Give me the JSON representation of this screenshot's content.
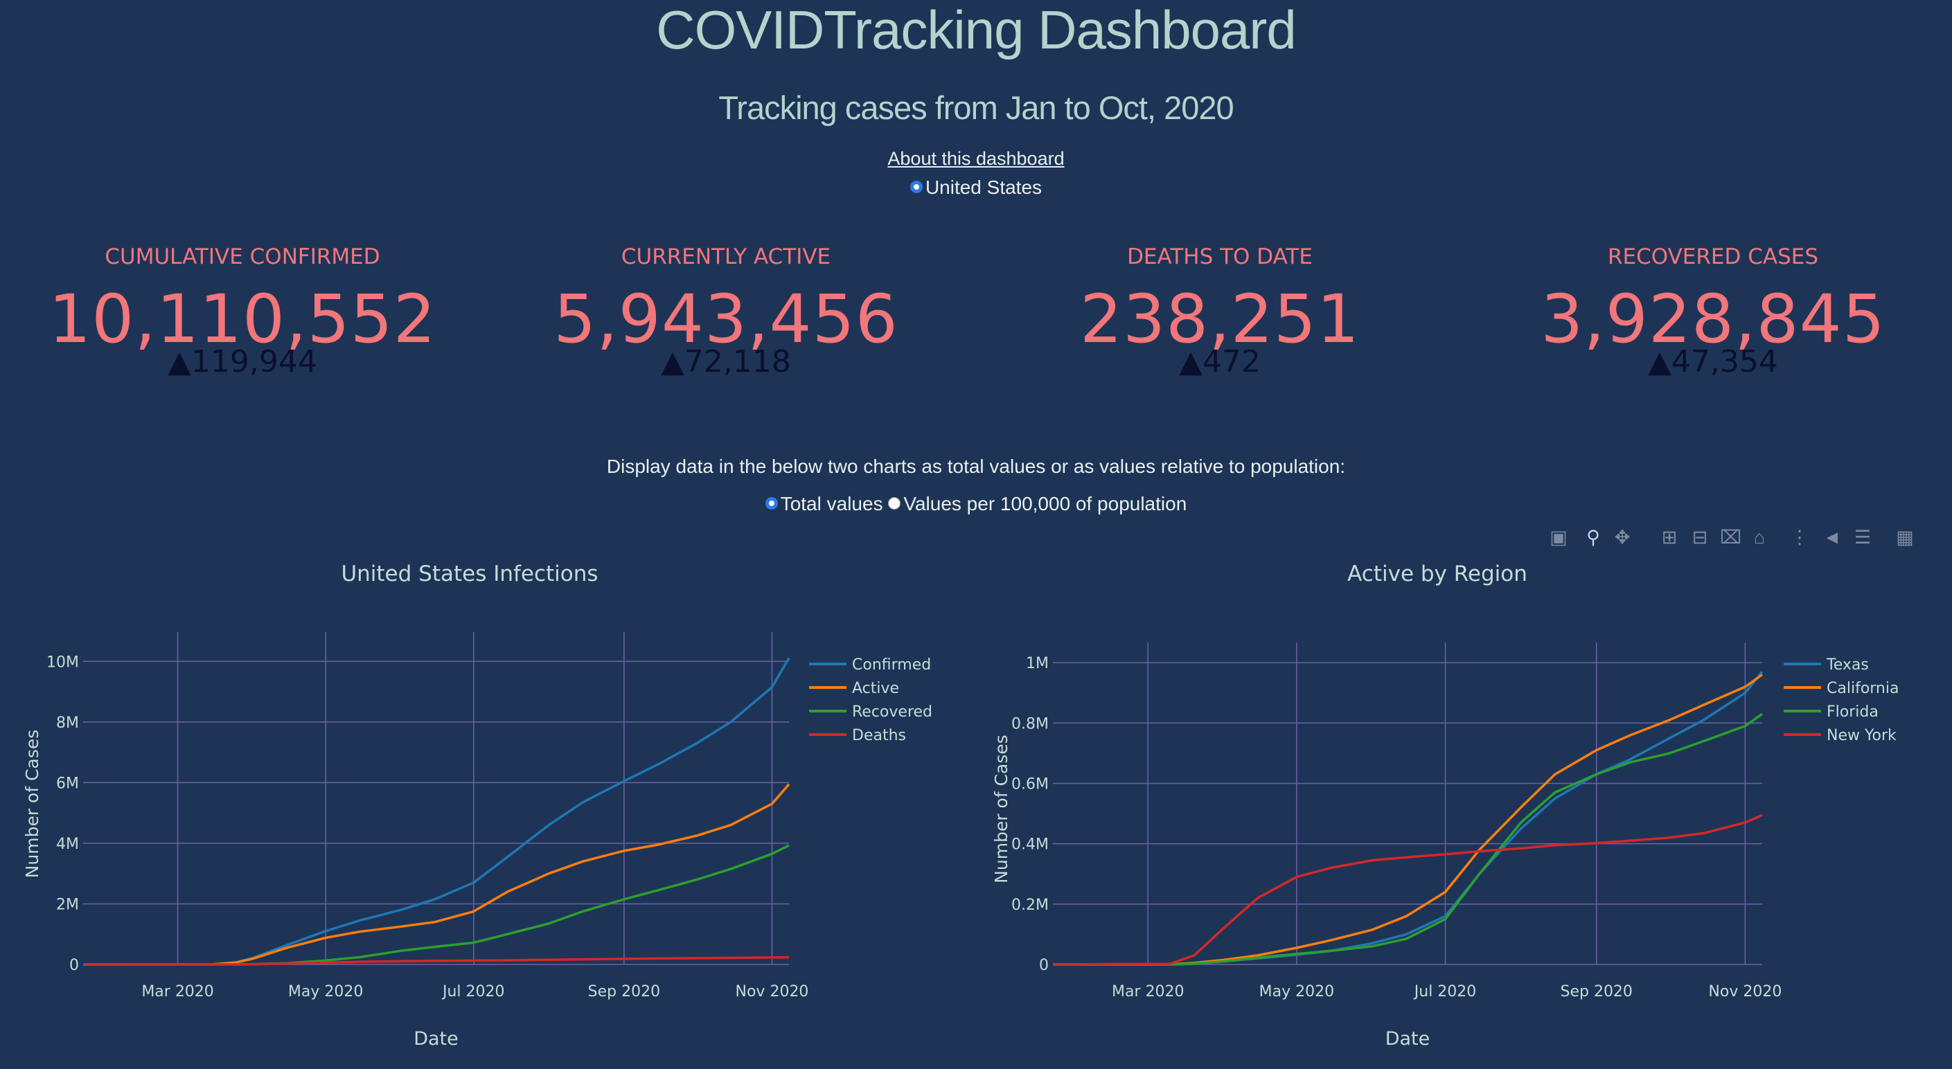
{
  "header": {
    "title": "COVIDTracking Dashboard",
    "subtitle": "Tracking cases from Jan to Oct, 2020",
    "about_link": "About this dashboard",
    "region_option": "United States"
  },
  "kpis": [
    {
      "label": "CUMULATIVE CONFIRMED",
      "value": "10,110,552",
      "delta": "▲119,944"
    },
    {
      "label": "CURRENTLY ACTIVE",
      "value": "5,943,456",
      "delta": "▲72,118"
    },
    {
      "label": "DEATHS TO DATE",
      "value": "238,251",
      "delta": "▲472"
    },
    {
      "label": "RECOVERED CASES",
      "value": "3,928,845",
      "delta": "▲47,354"
    }
  ],
  "display": {
    "note": "Display data in the below two charts as total values or as values relative to population:",
    "option_total": "Total values",
    "option_per_capita": "Values per 100,000 of population"
  },
  "modebar_icons": [
    "camera-icon",
    "zoom-icon",
    "pan-icon",
    "zoom-in-icon",
    "zoom-out-icon",
    "autoscale-icon",
    "reset-axes-icon",
    "spike-lines-icon",
    "hover-closest-icon",
    "hover-compare-icon",
    "plotly-logo-icon"
  ],
  "colors": {
    "background": "#1e3456",
    "accent": "#f2767a",
    "grid": "#7566a8",
    "blue": "#1f77b4",
    "orange": "#ff7f0e",
    "green": "#2ca02c",
    "red": "#d62728"
  },
  "chart_data": [
    {
      "type": "line",
      "title": "United States Infections",
      "xlabel": "Date",
      "ylabel": "Number of Cases",
      "x_ticks": [
        "Mar 2020",
        "May 2020",
        "Jul 2020",
        "Sep 2020",
        "Nov 2020"
      ],
      "y_ticks": [
        "0",
        "2M",
        "4M",
        "6M",
        "8M",
        "10M"
      ],
      "ylim": [
        0,
        10600000
      ],
      "legend_position": "top-right",
      "grid": true,
      "x": [
        "2020-01-22",
        "2020-03-15",
        "2020-03-25",
        "2020-04-01",
        "2020-04-15",
        "2020-05-01",
        "2020-05-15",
        "2020-06-01",
        "2020-06-15",
        "2020-07-01",
        "2020-07-15",
        "2020-08-01",
        "2020-08-15",
        "2020-09-01",
        "2020-09-15",
        "2020-10-01",
        "2020-10-15",
        "2020-11-01",
        "2020-11-08"
      ],
      "series": [
        {
          "name": "Confirmed",
          "color": "#1f77b4",
          "values": [
            0,
            3000,
            70000,
            215000,
            640000,
            1100000,
            1450000,
            1800000,
            2150000,
            2700000,
            3550000,
            4600000,
            5350000,
            6050000,
            6600000,
            7300000,
            8000000,
            9150000,
            10110552
          ]
        },
        {
          "name": "Active",
          "color": "#ff7f0e",
          "values": [
            0,
            2500,
            65000,
            190000,
            550000,
            880000,
            1080000,
            1250000,
            1400000,
            1750000,
            2400000,
            3000000,
            3400000,
            3750000,
            3950000,
            4250000,
            4600000,
            5300000,
            5943456
          ]
        },
        {
          "name": "Recovered",
          "color": "#2ca02c",
          "values": [
            0,
            0,
            2000,
            8000,
            40000,
            130000,
            240000,
            450000,
            580000,
            720000,
            1000000,
            1350000,
            1750000,
            2150000,
            2450000,
            2800000,
            3150000,
            3650000,
            3928845
          ]
        },
        {
          "name": "Deaths",
          "color": "#d62728",
          "values": [
            0,
            60,
            1000,
            5000,
            30000,
            65000,
            88000,
            106000,
            118000,
            128000,
            137000,
            155000,
            170000,
            185000,
            197000,
            208000,
            218000,
            230000,
            238251
          ]
        }
      ]
    },
    {
      "type": "line",
      "title": "Active by Region",
      "xlabel": "Date",
      "ylabel": "Number of Cases",
      "x_ticks": [
        "Mar 2020",
        "May 2020",
        "Jul 2020",
        "Sep 2020",
        "Nov 2020"
      ],
      "y_ticks": [
        "0",
        "0.2M",
        "0.4M",
        "0.6M",
        "0.8M",
        "1M"
      ],
      "ylim": [
        0,
        1030000
      ],
      "legend_position": "top-right",
      "grid": true,
      "x": [
        "2020-01-22",
        "2020-03-10",
        "2020-03-20",
        "2020-04-01",
        "2020-04-15",
        "2020-05-01",
        "2020-05-15",
        "2020-06-01",
        "2020-06-15",
        "2020-07-01",
        "2020-07-15",
        "2020-08-01",
        "2020-08-15",
        "2020-09-01",
        "2020-09-15",
        "2020-10-01",
        "2020-10-15",
        "2020-11-01",
        "2020-11-08"
      ],
      "series": [
        {
          "name": "Texas",
          "color": "#1f77b4",
          "values": [
            0,
            100,
            2000,
            10000,
            20000,
            32000,
            45000,
            70000,
            100000,
            160000,
            300000,
            450000,
            550000,
            630000,
            680000,
            750000,
            810000,
            900000,
            970000
          ]
        },
        {
          "name": "California",
          "color": "#ff7f0e",
          "values": [
            0,
            200,
            5000,
            15000,
            30000,
            55000,
            80000,
            115000,
            160000,
            240000,
            380000,
            520000,
            630000,
            710000,
            760000,
            810000,
            860000,
            920000,
            960000
          ]
        },
        {
          "name": "Florida",
          "color": "#2ca02c",
          "values": [
            0,
            100,
            3000,
            10000,
            22000,
            35000,
            45000,
            60000,
            85000,
            150000,
            300000,
            470000,
            570000,
            630000,
            670000,
            700000,
            740000,
            790000,
            830000
          ]
        },
        {
          "name": "New York",
          "color": "#d62728",
          "values": [
            0,
            2000,
            30000,
            120000,
            220000,
            290000,
            320000,
            345000,
            355000,
            365000,
            375000,
            385000,
            395000,
            402000,
            410000,
            420000,
            435000,
            470000,
            495000
          ]
        }
      ]
    }
  ]
}
